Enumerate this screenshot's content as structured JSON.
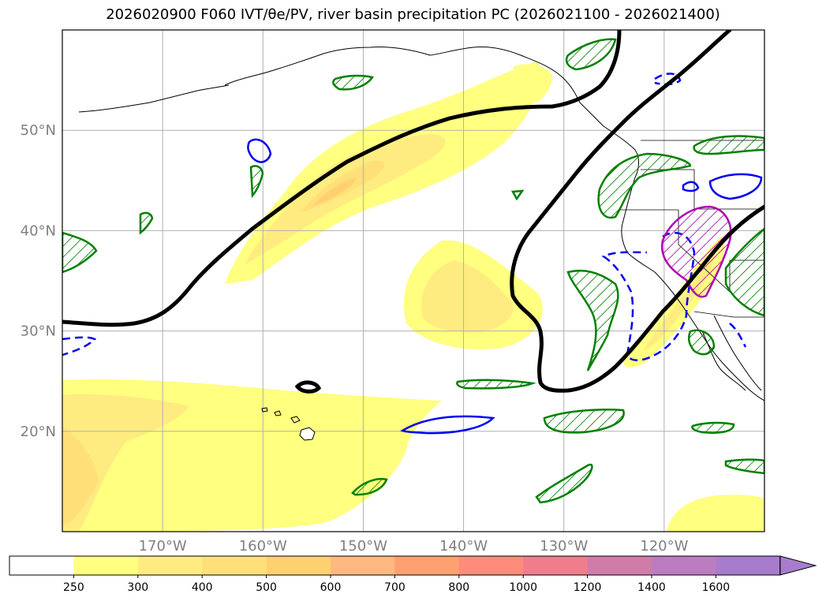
{
  "title": "2026020900 F060 IVT/θe/PV, river basin precipitation PC (2026021100 - 2026021400)",
  "map": {
    "lon_range": [
      -180,
      -110
    ],
    "lat_range": [
      10,
      60
    ],
    "lat_ticks": [
      {
        "value": 50,
        "label": "50°N"
      },
      {
        "value": 40,
        "label": "40°N"
      },
      {
        "value": 30,
        "label": "30°N"
      },
      {
        "value": 20,
        "label": "20°N"
      }
    ],
    "lon_ticks": [
      {
        "value": -170,
        "label": "170°W"
      },
      {
        "value": -160,
        "label": "160°W"
      },
      {
        "value": -150,
        "label": "150°W"
      },
      {
        "value": -140,
        "label": "140°W"
      },
      {
        "value": -130,
        "label": "130°W"
      },
      {
        "value": -120,
        "label": "120°W"
      }
    ],
    "colors": {
      "grid": "#b0b0b0",
      "contour": "#000000",
      "pv_green": "#008000",
      "theta_blue": "#0000ee",
      "precip_magenta": "#b000b0",
      "coast": "#000000"
    }
  },
  "colorbar": {
    "levels": [
      "250",
      "300",
      "400",
      "500",
      "600",
      "700",
      "800",
      "1000",
      "1200",
      "1400",
      "1600"
    ],
    "colors": [
      "#ffffff",
      "#ffff80",
      "#ffec80",
      "#ffe078",
      "#ffd070",
      "#ffb880",
      "#ffa070",
      "#ff8c7a",
      "#f07c8c",
      "#d07ca8",
      "#bc7cc0",
      "#a87ccc"
    ],
    "extend": "max"
  }
}
